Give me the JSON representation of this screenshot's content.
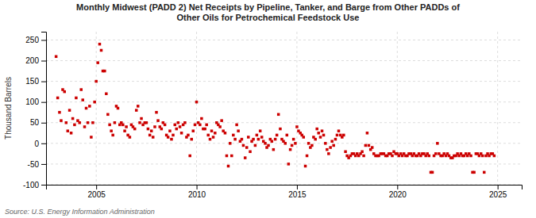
{
  "chart_data": {
    "type": "scatter",
    "title": "Monthly Midwest (PADD 2) Net Receipts by Pipeline, Tanker, and Barge from Other PADDs of\nOther Oils for Petrochemical Feedstock Use",
    "ylabel": "Thousand Barrels",
    "annotations": [
      "Source: U.S. Energy Information Administration"
    ],
    "color": "#cc0000",
    "marker": "square",
    "grid": true,
    "xlim": [
      2002.5,
      2026.2
    ],
    "ylim": [
      -100,
      270
    ],
    "xticks": [
      2005,
      2010,
      2015,
      2020,
      2025
    ],
    "yticks": [
      -100,
      -50,
      0,
      50,
      100,
      150,
      200,
      250
    ],
    "x": [
      2003.0,
      2003.08,
      2003.17,
      2003.25,
      2003.33,
      2003.42,
      2003.5,
      2003.58,
      2003.67,
      2003.75,
      2003.83,
      2003.92,
      2004.0,
      2004.08,
      2004.17,
      2004.25,
      2004.33,
      2004.42,
      2004.5,
      2004.58,
      2004.67,
      2004.75,
      2004.83,
      2004.92,
      2005.0,
      2005.08,
      2005.17,
      2005.25,
      2005.33,
      2005.42,
      2005.5,
      2005.58,
      2005.67,
      2005.75,
      2005.83,
      2005.92,
      2006.0,
      2006.08,
      2006.17,
      2006.25,
      2006.33,
      2006.42,
      2006.5,
      2006.58,
      2006.67,
      2006.75,
      2006.83,
      2006.92,
      2007.0,
      2007.08,
      2007.17,
      2007.25,
      2007.33,
      2007.42,
      2007.5,
      2007.58,
      2007.67,
      2007.75,
      2007.83,
      2007.92,
      2008.0,
      2008.08,
      2008.17,
      2008.25,
      2008.33,
      2008.42,
      2008.5,
      2008.58,
      2008.67,
      2008.75,
      2008.83,
      2008.92,
      2009.0,
      2009.08,
      2009.17,
      2009.25,
      2009.33,
      2009.42,
      2009.5,
      2009.58,
      2009.67,
      2009.75,
      2009.83,
      2009.92,
      2010.0,
      2010.08,
      2010.17,
      2010.25,
      2010.33,
      2010.42,
      2010.5,
      2010.58,
      2010.67,
      2010.75,
      2010.83,
      2010.92,
      2011.0,
      2011.08,
      2011.17,
      2011.25,
      2011.33,
      2011.42,
      2011.5,
      2011.58,
      2011.67,
      2011.75,
      2011.83,
      2011.92,
      2012.0,
      2012.08,
      2012.17,
      2012.25,
      2012.33,
      2012.42,
      2012.5,
      2012.58,
      2012.67,
      2012.75,
      2012.83,
      2012.92,
      2013.0,
      2013.08,
      2013.17,
      2013.25,
      2013.33,
      2013.42,
      2013.5,
      2013.58,
      2013.67,
      2013.75,
      2013.83,
      2013.92,
      2014.0,
      2014.08,
      2014.17,
      2014.25,
      2014.33,
      2014.42,
      2014.5,
      2014.58,
      2014.67,
      2014.75,
      2014.83,
      2014.92,
      2015.0,
      2015.08,
      2015.17,
      2015.25,
      2015.33,
      2015.42,
      2015.5,
      2015.58,
      2015.67,
      2015.75,
      2015.83,
      2015.92,
      2016.0,
      2016.08,
      2016.17,
      2016.25,
      2016.33,
      2016.42,
      2016.5,
      2016.58,
      2016.67,
      2016.75,
      2016.83,
      2016.92,
      2017.0,
      2017.08,
      2017.17,
      2017.25,
      2017.33,
      2017.42,
      2017.5,
      2017.58,
      2017.67,
      2017.75,
      2017.83,
      2017.92,
      2018.0,
      2018.08,
      2018.17,
      2018.25,
      2018.33,
      2018.42,
      2018.5,
      2018.58,
      2018.67,
      2018.75,
      2018.83,
      2018.92,
      2019.0,
      2019.08,
      2019.17,
      2019.25,
      2019.33,
      2019.42,
      2019.5,
      2019.58,
      2019.67,
      2019.75,
      2019.83,
      2019.92,
      2020.0,
      2020.08,
      2020.17,
      2020.25,
      2020.33,
      2020.42,
      2020.5,
      2020.58,
      2020.67,
      2020.75,
      2020.83,
      2020.92,
      2021.0,
      2021.08,
      2021.17,
      2021.25,
      2021.33,
      2021.42,
      2021.5,
      2021.58,
      2021.67,
      2021.75,
      2021.83,
      2021.92,
      2022.0,
      2022.08,
      2022.17,
      2022.25,
      2022.33,
      2022.42,
      2022.5,
      2022.58,
      2022.67,
      2022.75,
      2022.83,
      2022.92,
      2023.0,
      2023.08,
      2023.17,
      2023.25,
      2023.33,
      2023.42,
      2023.5,
      2023.58,
      2023.67,
      2023.75,
      2023.83,
      2023.92,
      2024.0,
      2024.08,
      2024.17,
      2024.25,
      2024.33,
      2024.42,
      2024.5,
      2024.58,
      2024.67,
      2024.75,
      2024.83
    ],
    "values": [
      210,
      110,
      75,
      55,
      130,
      125,
      50,
      30,
      80,
      25,
      60,
      45,
      110,
      55,
      50,
      130,
      105,
      40,
      85,
      50,
      90,
      15,
      50,
      100,
      150,
      195,
      240,
      225,
      175,
      175,
      120,
      70,
      45,
      30,
      20,
      50,
      90,
      85,
      45,
      50,
      45,
      30,
      40,
      20,
      15,
      45,
      40,
      35,
      80,
      90,
      50,
      60,
      45,
      50,
      50,
      35,
      20,
      30,
      15,
      40,
      75,
      55,
      40,
      35,
      50,
      45,
      20,
      15,
      30,
      10,
      20,
      45,
      35,
      50,
      40,
      25,
      45,
      50,
      15,
      20,
      -30,
      10,
      30,
      45,
      100,
      50,
      45,
      60,
      35,
      35,
      45,
      20,
      10,
      30,
      15,
      25,
      50,
      45,
      40,
      55,
      30,
      25,
      -30,
      -55,
      0,
      -30,
      20,
      10,
      45,
      30,
      5,
      10,
      -5,
      -35,
      -10,
      15,
      -20,
      5,
      10,
      -5,
      20,
      10,
      30,
      15,
      5,
      0,
      -10,
      -5,
      10,
      5,
      -15,
      10,
      20,
      70,
      35,
      10,
      5,
      0,
      20,
      -50,
      -15,
      -5,
      10,
      0,
      40,
      30,
      25,
      20,
      15,
      -55,
      -30,
      0,
      -10,
      -5,
      15,
      10,
      35,
      25,
      15,
      30,
      20,
      0,
      -15,
      -25,
      -10,
      5,
      -5,
      10,
      20,
      30,
      20,
      15,
      20,
      -20,
      -30,
      -35,
      -30,
      -25,
      -25,
      -30,
      -25,
      -30,
      -25,
      -20,
      -30,
      -5,
      25,
      -5,
      -15,
      -10,
      -25,
      -30,
      -30,
      -30,
      -25,
      -25,
      -25,
      -30,
      -30,
      -25,
      -25,
      -30,
      -20,
      -25,
      -25,
      -30,
      -25,
      -30,
      -25,
      -30,
      -30,
      -25,
      -25,
      -30,
      -25,
      -30,
      -30,
      -25,
      -30,
      -25,
      -25,
      -30,
      -25,
      -30,
      -70,
      -70,
      -30,
      -25,
      0,
      -25,
      -30,
      -30,
      -25,
      -30,
      -25,
      -30,
      -35,
      -35,
      -30,
      -30,
      -25,
      -30,
      -25,
      -30,
      -30,
      -25,
      -30,
      -25,
      -30,
      -70,
      -70,
      -25,
      -25,
      -30,
      -25,
      -30,
      -70,
      -30,
      -25,
      -30,
      -25,
      -25,
      -30
    ]
  }
}
